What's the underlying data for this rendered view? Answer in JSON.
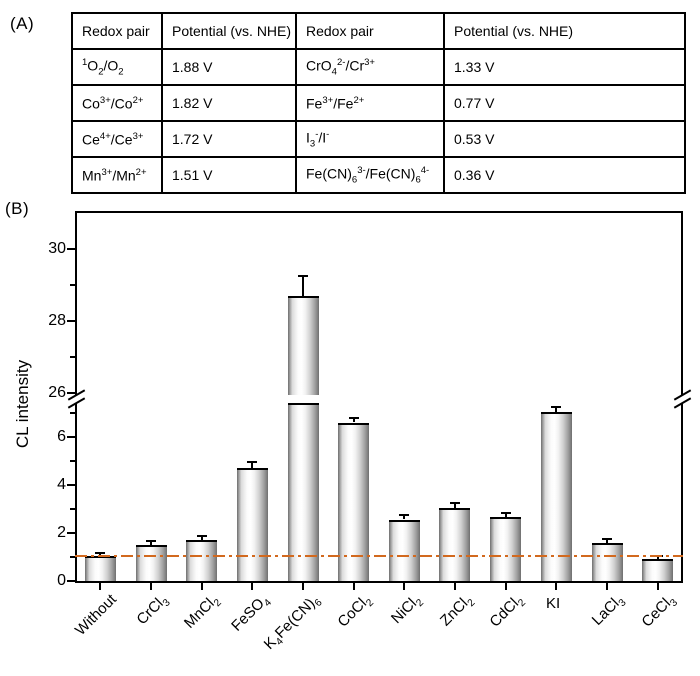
{
  "panels": {
    "a_label": "(A)",
    "b_label": "(B)"
  },
  "table": {
    "headers": [
      "Redox pair",
      "Potential (vs. NHE)",
      "Redox pair",
      "Potential (vs. NHE)"
    ],
    "rows": [
      {
        "cells": [
          "<sup>1</sup>O<sub>2</sub>/O<sub>2</sub>",
          "1.88 V",
          "CrO<sub>4</sub><sup>2-</sup>/Cr<sup>3+</sup>",
          "1.33 V"
        ]
      },
      {
        "cells": [
          "Co<sup>3+</sup>/Co<sup>2+</sup>",
          "1.82 V",
          "Fe<sup>3+</sup>/Fe<sup>2+</sup>",
          "0.77 V"
        ]
      },
      {
        "cells": [
          "Ce<sup>4+</sup>/Ce<sup>3+</sup>",
          "1.72 V",
          "I<sub>3</sub><sup>-</sup>/I<sup>-</sup>",
          "0.53 V"
        ]
      },
      {
        "cells": [
          "Mn<sup>3+</sup>/Mn<sup>2+</sup>",
          "1.51 V",
          "Fe(CN)<sub>6</sub><sup>3-</sup>/Fe(CN)<sub>6</sub><sup>4-</sup>",
          "0.36 V"
        ]
      }
    ]
  },
  "chart_data": {
    "type": "bar",
    "title": "",
    "xlabel": "",
    "ylabel": "CL intensity",
    "categories": [
      {
        "label": "Without",
        "html": "Without",
        "rotate": true
      },
      {
        "label": "CrCl3",
        "html": "CrCl<sub>3</sub>",
        "rotate": true
      },
      {
        "label": "MnCl2",
        "html": "MnCl<sub>2</sub>",
        "rotate": true
      },
      {
        "label": "FeSO4",
        "html": "FeSO<sub>4</sub>",
        "rotate": true
      },
      {
        "label": "K4Fe(CN)6",
        "html": "K<sub>4</sub>Fe(CN)<sub>6</sub>",
        "rotate": true
      },
      {
        "label": "CoCl2",
        "html": "CoCl<sub>2</sub>",
        "rotate": true
      },
      {
        "label": "NiCl2",
        "html": "NiCl<sub>2</sub>",
        "rotate": true
      },
      {
        "label": "ZnCl2",
        "html": "ZnCl<sub>2</sub>",
        "rotate": true
      },
      {
        "label": "CdCl2",
        "html": "CdCl<sub>2</sub>",
        "rotate": true
      },
      {
        "label": "KI",
        "html": "KI",
        "rotate": false
      },
      {
        "label": "LaCl3",
        "html": "LaCl<sub>3</sub>",
        "rotate": true
      },
      {
        "label": "CeCl3",
        "html": "CeCl<sub>3</sub>",
        "rotate": true
      }
    ],
    "values": [
      1.05,
      1.5,
      1.7,
      4.7,
      28.7,
      6.6,
      2.55,
      3.05,
      2.65,
      7.05,
      1.6,
      0.9
    ],
    "errors": [
      0.1,
      0.15,
      0.18,
      0.25,
      0.55,
      0.18,
      0.18,
      0.2,
      0.18,
      0.2,
      0.15,
      0.15
    ],
    "baseline": {
      "value": 1.05,
      "color": "#d2691e",
      "style": "dash-dot"
    },
    "axis": {
      "ylim": [
        0,
        31
      ],
      "break": {
        "lower_max": 7.3,
        "upper_min": 25.9
      },
      "yticks_lower": [
        0,
        2,
        4,
        6
      ],
      "yticks_lower_minor": [
        1,
        3,
        5,
        7
      ],
      "yticks_upper": [
        26,
        28,
        30
      ],
      "yticks_upper_minor": [
        27,
        29
      ]
    },
    "grid": false,
    "legend": "none",
    "bar_fill": "cylindrical-gray-gradient"
  }
}
